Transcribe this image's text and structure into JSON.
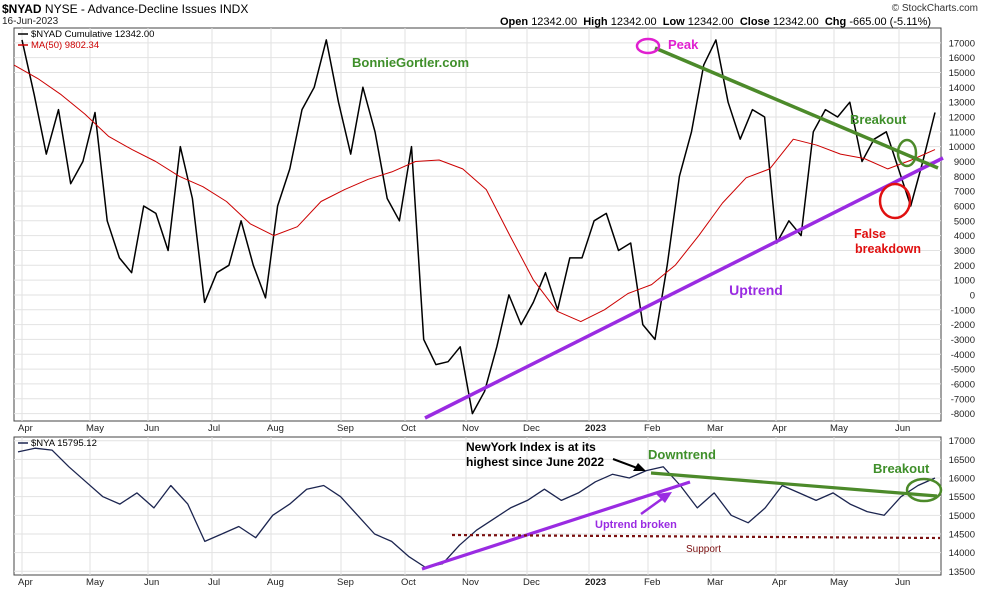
{
  "header": {
    "symbol": "$NYAD",
    "description": "NYSE - Advance-Decline Issues INDX",
    "date": "16-Jun-2023",
    "credit": "© StockCharts.com",
    "ohlc": {
      "open_label": "Open",
      "open": "12342.00",
      "high_label": "High",
      "high": "12342.00",
      "low_label": "Low",
      "low": "12342.00",
      "close_label": "Close",
      "close": "12342.00",
      "chg_label": "Chg",
      "chg": "-665.00 (-5.11%)"
    }
  },
  "chart_data": [
    {
      "type": "line",
      "panel": "top",
      "legend": [
        {
          "text": "$NYAD Cumulative 12342.00",
          "color": "#000000"
        },
        {
          "text": "MA(50) 9802.34",
          "color": "#cc0000"
        }
      ],
      "ylim": [
        -8500,
        18000
      ],
      "y_ticks": [
        -8000,
        -7000,
        -6000,
        -5000,
        -4000,
        -3000,
        -2000,
        -1000,
        0,
        1000,
        2000,
        3000,
        4000,
        5000,
        6000,
        7000,
        8000,
        9000,
        10000,
        11000,
        12000,
        13000,
        14000,
        15000,
        16000,
        17000
      ],
      "x_ticks": [
        "Apr",
        "May",
        "Jun",
        "Jul",
        "Aug",
        "Sep",
        "Oct",
        "Nov",
        "Dec",
        "2023",
        "Feb",
        "Mar",
        "Apr",
        "May",
        "Jun"
      ],
      "grid": true,
      "series": [
        {
          "name": "$NYAD Cumulative",
          "color": "#000000",
          "values": [
            17200,
            13500,
            9500,
            12500,
            7500,
            9000,
            12300,
            5000,
            2500,
            1500,
            6000,
            5500,
            3000,
            10000,
            6500,
            -500,
            1500,
            2000,
            5000,
            2000,
            -200,
            6000,
            8500,
            12500,
            14000,
            17200,
            13000,
            9500,
            14000,
            11000,
            6500,
            5000,
            10000,
            -3000,
            -4700,
            -4500,
            -3500,
            -8000,
            -6500,
            -3500,
            0,
            -2000,
            -500,
            1500,
            -1000,
            2500,
            2500,
            5000,
            5500,
            3000,
            3500,
            -2000,
            -3000,
            2000,
            8000,
            11000,
            15500,
            17200,
            13000,
            10500,
            12500,
            12000,
            3500,
            5000,
            4000,
            11000,
            12500,
            12000,
            13000,
            9000,
            10500,
            11000,
            8500,
            6000,
            9000,
            12300
          ]
        },
        {
          "name": "MA(50)",
          "color": "#cc0000",
          "values": [
            15500,
            14600,
            13500,
            12200,
            10700,
            9800,
            9000,
            8000,
            7300,
            6300,
            4800,
            4000,
            4600,
            6300,
            7100,
            7800,
            8300,
            9000,
            9100,
            8500,
            7100,
            4000,
            1000,
            -1100,
            -1800,
            -1000,
            100,
            700,
            2000,
            4000,
            6200,
            7900,
            8500,
            10500,
            10100,
            9500,
            9200,
            8500,
            9100,
            9800
          ]
        }
      ],
      "annotations": [
        {
          "text": "BonnieGortler.com",
          "color": "#3f8f2a"
        },
        {
          "text": "Peak",
          "color": "#e020d0"
        },
        {
          "text": "Breakout",
          "color": "#3f8f2a"
        },
        {
          "text": "False",
          "color": "#e01010"
        },
        {
          "text": "breakdown",
          "color": "#e01010"
        },
        {
          "text": "Uptrend",
          "color": "#9a2be2"
        }
      ]
    },
    {
      "type": "line",
      "panel": "bottom",
      "legend": [
        {
          "text": "$NYA 15795.12",
          "color": "#1c2550"
        }
      ],
      "ylim": [
        13400,
        17100
      ],
      "y_ticks": [
        13500,
        14000,
        14500,
        15000,
        15500,
        16000,
        16500,
        17000
      ],
      "x_ticks": [
        "Apr",
        "May",
        "Jun",
        "Jul",
        "Aug",
        "Sep",
        "Oct",
        "Nov",
        "Dec",
        "2023",
        "Feb",
        "Mar",
        "Apr",
        "May",
        "Jun"
      ],
      "grid": true,
      "series": [
        {
          "name": "$NYA",
          "color": "#1c2550",
          "values": [
            16700,
            16800,
            16750,
            16300,
            15900,
            15500,
            15300,
            15600,
            15200,
            15800,
            15300,
            14300,
            14500,
            14700,
            14400,
            15000,
            15300,
            15700,
            15800,
            15500,
            15000,
            14500,
            14300,
            13900,
            13600,
            13700,
            14200,
            14600,
            14900,
            15200,
            15400,
            15700,
            15400,
            15600,
            15900,
            16100,
            16000,
            16200,
            16300,
            15800,
            15200,
            15600,
            15000,
            14800,
            15200,
            15800,
            15600,
            15400,
            15600,
            15300,
            15100,
            15000,
            15500,
            15800,
            16000
          ]
        }
      ],
      "annotations": [
        {
          "text": "NewYork Index is at its"
        },
        {
          "text": "highest since June 2022"
        },
        {
          "text": "Downtrend",
          "color": "#3f8f2a"
        },
        {
          "text": "Breakout",
          "color": "#3f8f2a"
        },
        {
          "text": "Uptrend broken",
          "color": "#9a2be2"
        },
        {
          "text": "Support",
          "color": "#7a1010"
        }
      ]
    }
  ]
}
